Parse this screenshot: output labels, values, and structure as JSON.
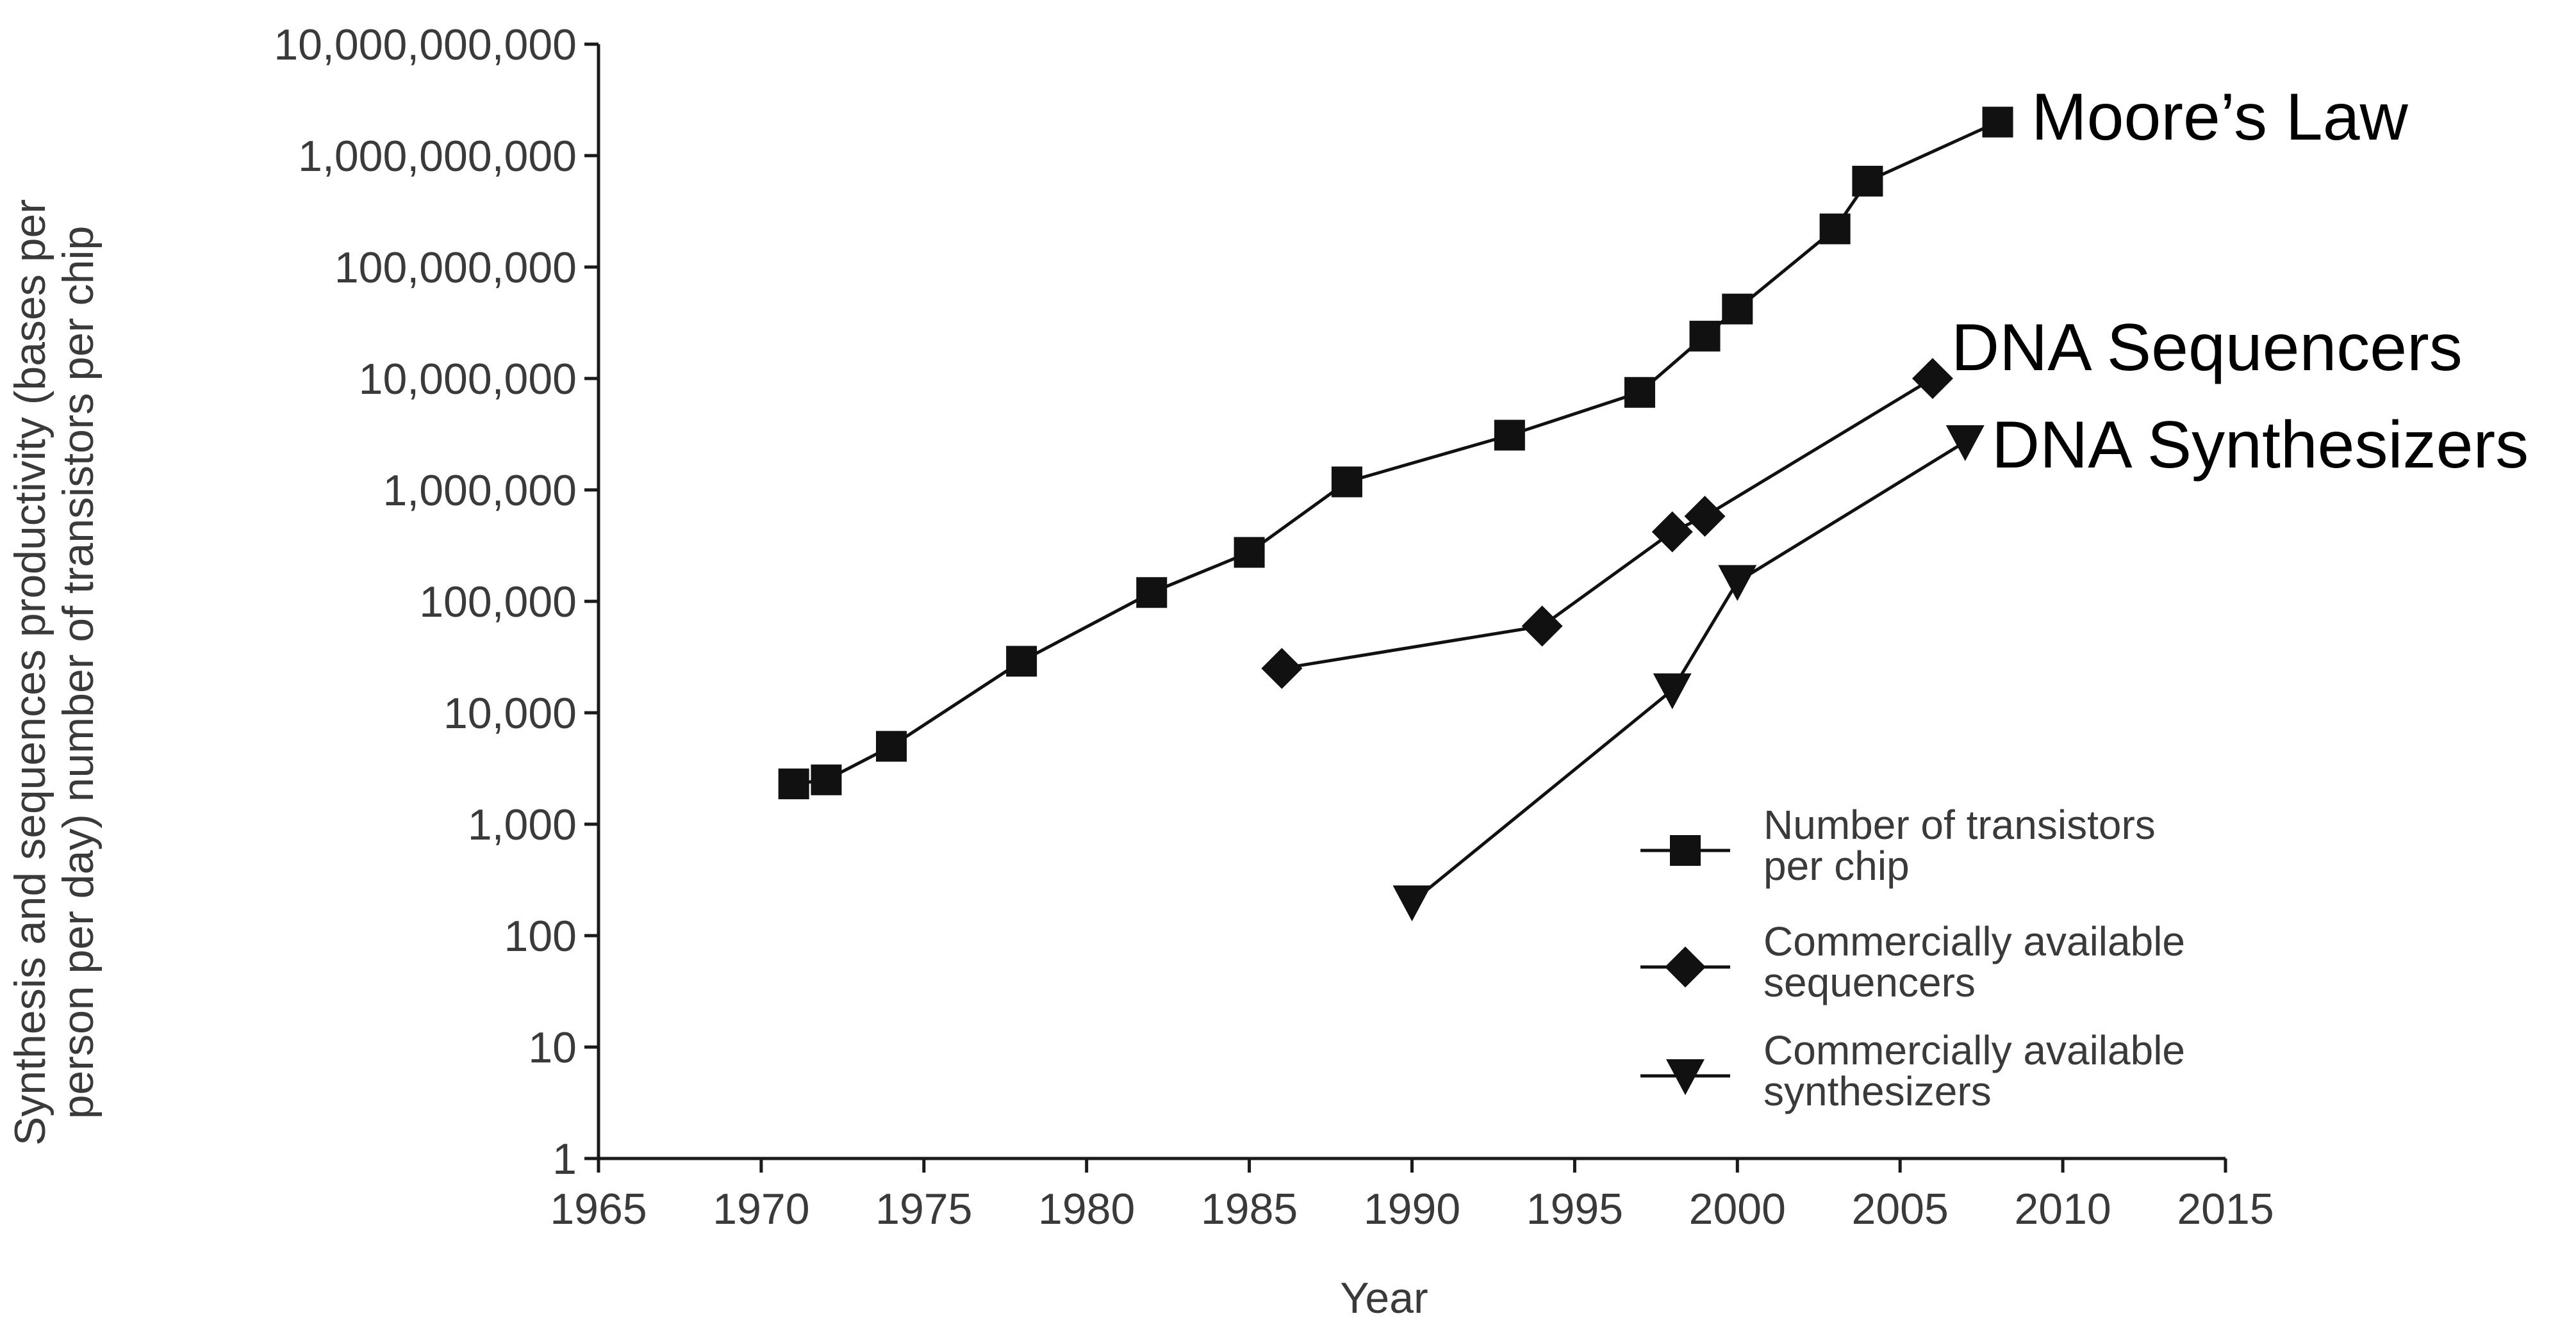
{
  "chart_data": {
    "type": "line",
    "xlabel": "Year",
    "ylabel_lines": [
      "Synthesis and sequences productivity (bases per",
      "person per day) number of transistors per chip"
    ],
    "x_ticks": [
      1965,
      1970,
      1975,
      1980,
      1985,
      1990,
      1995,
      2000,
      2005,
      2010,
      2015
    ],
    "xlim": [
      1965,
      2015
    ],
    "y_scale": "log",
    "ylim": [
      1,
      10000000000
    ],
    "y_ticks": [
      1,
      10,
      100,
      1000,
      10000,
      100000,
      1000000,
      10000000,
      100000000,
      1000000000,
      10000000000
    ],
    "y_tick_labels": [
      "1",
      "10",
      "100",
      "1,000",
      "10,000",
      "100,000",
      "1,000,000",
      "10,000,000",
      "100,000,000",
      "1,000,000,000",
      "10,000,000,000"
    ],
    "grid": false,
    "legend_position": "bottom-right",
    "series": [
      {
        "name": "Number of transistors per chip",
        "legend_lines": [
          "Number of transistors",
          "per chip"
        ],
        "marker": "square",
        "annotation": "Moore’s Law",
        "points": [
          {
            "x": 1971,
            "y": 2300
          },
          {
            "x": 1972,
            "y": 2500
          },
          {
            "x": 1974,
            "y": 5000
          },
          {
            "x": 1978,
            "y": 29000
          },
          {
            "x": 1982,
            "y": 120000
          },
          {
            "x": 1985,
            "y": 275000
          },
          {
            "x": 1988,
            "y": 1180000
          },
          {
            "x": 1993,
            "y": 3100000
          },
          {
            "x": 1997,
            "y": 7500000
          },
          {
            "x": 1999,
            "y": 24000000
          },
          {
            "x": 2000,
            "y": 42000000
          },
          {
            "x": 2003,
            "y": 220000000
          },
          {
            "x": 2004,
            "y": 590000000
          },
          {
            "x": 2008,
            "y": 2000000000
          }
        ]
      },
      {
        "name": "Commercially available sequencers",
        "legend_lines": [
          "Commercially available",
          "sequencers"
        ],
        "marker": "diamond",
        "annotation": "DNA Sequencers",
        "points": [
          {
            "x": 1986,
            "y": 25000
          },
          {
            "x": 1994,
            "y": 60000
          },
          {
            "x": 1998,
            "y": 420000
          },
          {
            "x": 1999,
            "y": 580000
          },
          {
            "x": 2006,
            "y": 10000000
          }
        ]
      },
      {
        "name": "Commercially available synthesizers",
        "legend_lines": [
          "Commercially available",
          "synthesizers"
        ],
        "marker": "triangle-down",
        "annotation": "DNA Synthesizers",
        "points": [
          {
            "x": 1990,
            "y": 200
          },
          {
            "x": 1998,
            "y": 16000
          },
          {
            "x": 2000,
            "y": 150000
          },
          {
            "x": 2007,
            "y": 2700000
          }
        ]
      }
    ]
  }
}
